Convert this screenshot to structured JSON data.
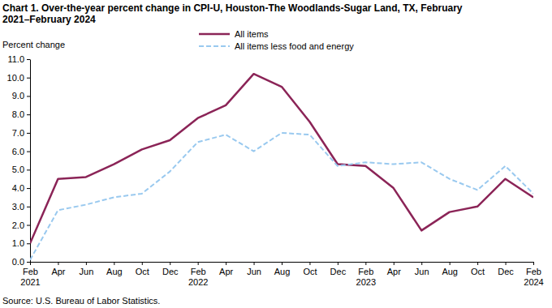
{
  "chart_data": {
    "type": "line",
    "title": "Chart 1. Over-the-year percent change in CPI-U, Houston-The Woodlands-Sugar Land, TX, February 2021–February 2024",
    "y_label": "Percent change",
    "source": "Source: U.S. Bureau of Labor Statistics.",
    "categories": [
      "Feb 2021",
      "Apr",
      "Jun",
      "Aug",
      "Oct",
      "Dec",
      "Feb 2022",
      "Apr",
      "Jun",
      "Aug",
      "Oct",
      "Dec",
      "Feb 2023",
      "Apr",
      "Jun",
      "Aug",
      "Oct",
      "Dec",
      "Feb 2024"
    ],
    "series": [
      {
        "name": "All items",
        "color": "#8b2457",
        "line_style": "solid",
        "values": [
          1.0,
          4.5,
          4.6,
          5.3,
          6.1,
          6.6,
          7.8,
          8.5,
          10.2,
          9.5,
          7.6,
          5.3,
          5.2,
          4.0,
          1.7,
          2.7,
          3.0,
          4.5,
          3.5
        ]
      },
      {
        "name": "All items less food and energy",
        "color": "#99c9ef",
        "line_style": "dashed",
        "values": [
          0.1,
          2.8,
          3.1,
          3.5,
          3.7,
          4.9,
          6.5,
          6.9,
          6.0,
          7.0,
          6.9,
          5.2,
          5.4,
          5.3,
          5.4,
          4.5,
          3.9,
          5.2,
          3.7
        ]
      }
    ],
    "ylim": [
      0,
      11
    ],
    "yticks": [
      {
        "value": 0,
        "label": "0.0"
      },
      {
        "value": 1,
        "label": "1.0"
      },
      {
        "value": 2,
        "label": "2.0"
      },
      {
        "value": 3,
        "label": "3.0"
      },
      {
        "value": 4,
        "label": "4.0"
      },
      {
        "value": 5,
        "label": "5.0"
      },
      {
        "value": 6,
        "label": "6.0"
      },
      {
        "value": 7,
        "label": "7.0"
      },
      {
        "value": 8,
        "label": "8.0"
      },
      {
        "value": 9,
        "label": "9.0"
      },
      {
        "value": 10,
        "label": "10.0"
      },
      {
        "value": 11,
        "label": "11.0"
      }
    ],
    "grid": false,
    "legend": "top"
  }
}
